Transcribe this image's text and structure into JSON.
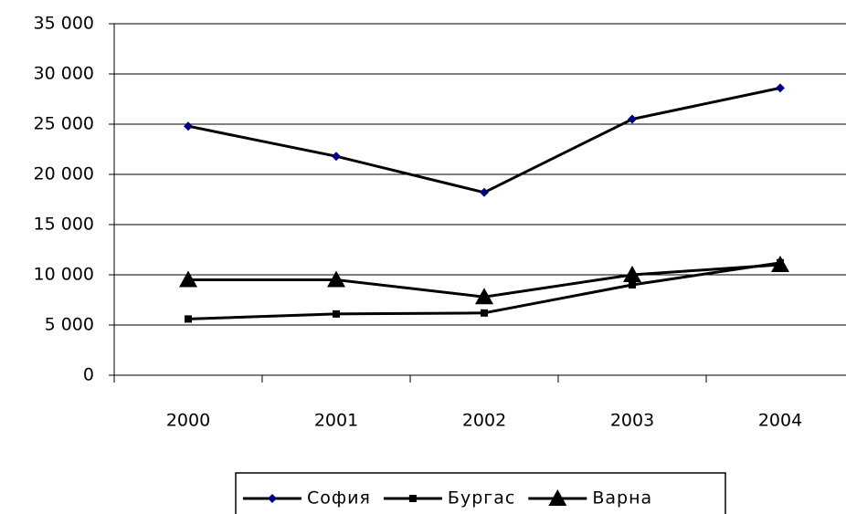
{
  "chart_data": {
    "type": "line",
    "categories": [
      "2000",
      "2001",
      "2002",
      "2003",
      "2004"
    ],
    "series": [
      {
        "name": "София",
        "color": "#000000",
        "marker": "diamond",
        "marker_color": "#000080",
        "values": [
          24800,
          21800,
          18200,
          25500,
          28600
        ]
      },
      {
        "name": "Бургас",
        "color": "#000000",
        "marker": "square",
        "marker_color": "#000000",
        "values": [
          5600,
          6100,
          6200,
          9000,
          11200
        ]
      },
      {
        "name": "Варна",
        "color": "#000000",
        "marker": "triangle",
        "marker_color": "#000000",
        "values": [
          9500,
          9500,
          7800,
          10000,
          11000
        ]
      }
    ],
    "ylim": [
      0,
      35000
    ],
    "yticks": [
      0,
      {
        "value": 5000,
        "label": "5 000"
      },
      {
        "value": 10000,
        "label": "10 000"
      },
      {
        "value": 15000,
        "label": "15 000"
      },
      {
        "value": 20000,
        "label": "20 000"
      },
      {
        "value": 25000,
        "label": "25 000"
      },
      {
        "value": 30000,
        "label": "30 000"
      },
      {
        "value": 35000,
        "label": "35 000"
      }
    ],
    "grid": true,
    "legend": "bottom"
  }
}
